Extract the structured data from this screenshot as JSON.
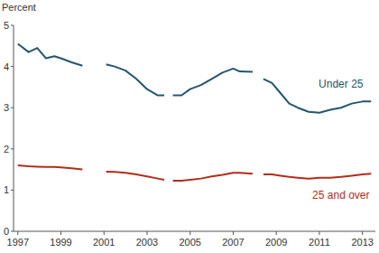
{
  "chart_data": {
    "type": "line",
    "ylabel": "Percent",
    "x": [
      1997.0,
      1997.5,
      1997.9,
      1998.3,
      1998.7,
      1999.0,
      1999.5,
      2000.0,
      2000.5,
      2001.1,
      2001.5,
      2002.0,
      2002.5,
      2003.0,
      2003.5,
      2003.8,
      2004.0,
      2004.2,
      2004.6,
      2005.0,
      2005.5,
      2006.0,
      2006.5,
      2007.0,
      2007.3,
      2007.9,
      2008.1,
      2008.4,
      2008.8,
      2009.2,
      2009.6,
      2010.0,
      2010.5,
      2011.0,
      2011.5,
      2012.0,
      2012.5,
      2013.0,
      2013.4
    ],
    "series": [
      {
        "name": "Under 25",
        "color": "#24566f",
        "values": [
          4.55,
          4.35,
          4.45,
          4.2,
          4.25,
          4.2,
          4.1,
          4.02,
          null,
          4.05,
          4.0,
          3.9,
          3.7,
          3.45,
          3.3,
          3.3,
          null,
          3.3,
          3.3,
          3.45,
          3.55,
          3.7,
          3.85,
          3.95,
          3.88,
          3.87,
          null,
          3.7,
          3.6,
          3.35,
          3.1,
          3.0,
          2.9,
          2.88,
          2.95,
          3.0,
          3.1,
          3.15,
          3.15
        ]
      },
      {
        "name": "25 and over",
        "color": "#b22d1b",
        "values": [
          1.6,
          1.58,
          1.57,
          1.56,
          1.56,
          1.55,
          1.53,
          1.5,
          null,
          1.45,
          1.44,
          1.42,
          1.38,
          1.33,
          1.28,
          1.25,
          null,
          1.23,
          1.23,
          1.25,
          1.28,
          1.33,
          1.37,
          1.42,
          1.42,
          1.4,
          null,
          1.38,
          1.38,
          1.35,
          1.32,
          1.3,
          1.28,
          1.3,
          1.3,
          1.32,
          1.35,
          1.38,
          1.4
        ]
      }
    ],
    "xlim": [
      1996.8,
      2013.6
    ],
    "xticks": [
      1997,
      1999,
      2001,
      2003,
      2005,
      2007,
      2009,
      2011,
      2013
    ],
    "ylim": [
      0,
      5
    ],
    "yticks": [
      0,
      1,
      2,
      3,
      4,
      5
    ],
    "grid": false
  }
}
